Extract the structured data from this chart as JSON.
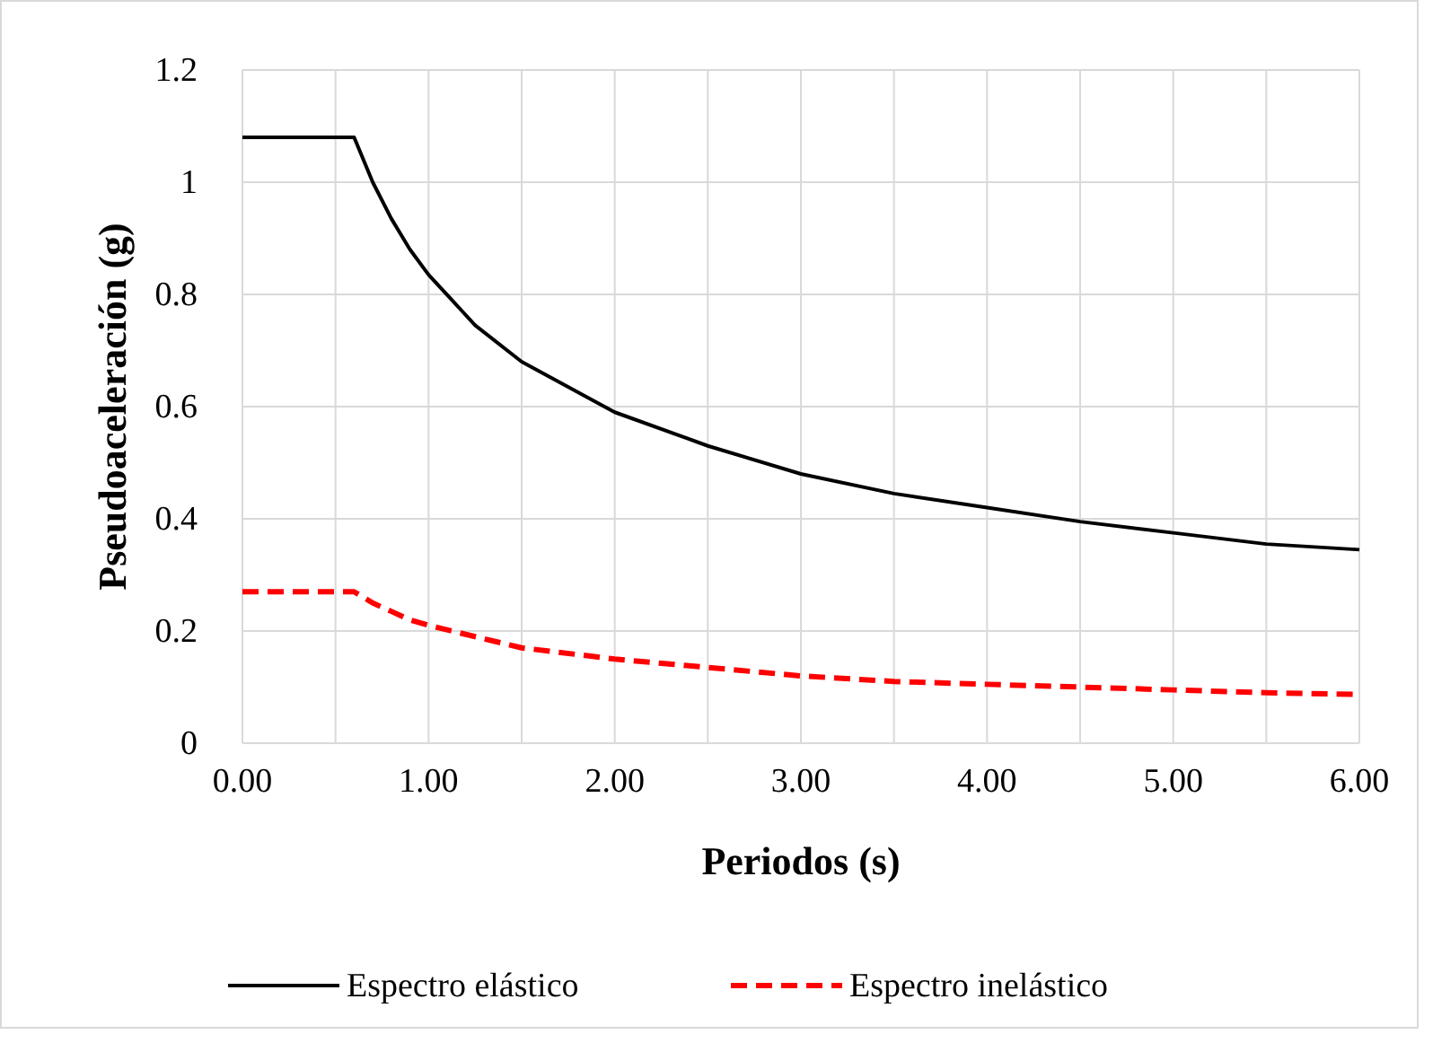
{
  "chart_data": {
    "type": "line",
    "xlabel": "Periodos (s)",
    "ylabel": "Pseudoaceleración (g)",
    "x": [
      0,
      0.6,
      0.7,
      0.8,
      0.9,
      1.0,
      1.25,
      1.5,
      2,
      2.5,
      3,
      3.5,
      4,
      4.5,
      5,
      5.5,
      6
    ],
    "series": [
      {
        "name": "Espectro elástico",
        "color": "#000000",
        "line_style": "solid",
        "values": [
          1.08,
          1.08,
          1.0,
          0.935,
          0.88,
          0.835,
          0.745,
          0.68,
          0.59,
          0.53,
          0.48,
          0.445,
          0.42,
          0.395,
          0.375,
          0.355,
          0.345
        ]
      },
      {
        "name": "Espectro inelástico",
        "color": "#ff0000",
        "line_style": "dashed",
        "values": [
          0.27,
          0.27,
          0.25,
          0.235,
          0.22,
          0.21,
          0.19,
          0.17,
          0.15,
          0.135,
          0.12,
          0.11,
          0.105,
          0.1,
          0.095,
          0.09,
          0.087
        ]
      }
    ],
    "xlim": [
      0,
      6
    ],
    "xticks": [
      {
        "value": 0,
        "label": "0.00"
      },
      {
        "value": 0.5,
        "label": null
      },
      {
        "value": 1,
        "label": "1.00"
      },
      {
        "value": 1.5,
        "label": null
      },
      {
        "value": 2,
        "label": "2.00"
      },
      {
        "value": 2.5,
        "label": null
      },
      {
        "value": 3,
        "label": "3.00"
      },
      {
        "value": 3.5,
        "label": null
      },
      {
        "value": 4,
        "label": "4.00"
      },
      {
        "value": 4.5,
        "label": null
      },
      {
        "value": 5,
        "label": "5.00"
      },
      {
        "value": 5.5,
        "label": null
      },
      {
        "value": 6,
        "label": "6.00"
      }
    ],
    "ylim": [
      0,
      1.2
    ],
    "yticks": [
      0,
      0.2,
      0.4,
      0.6,
      0.8,
      1,
      1.2
    ],
    "grid": true,
    "legend": "bottom"
  }
}
